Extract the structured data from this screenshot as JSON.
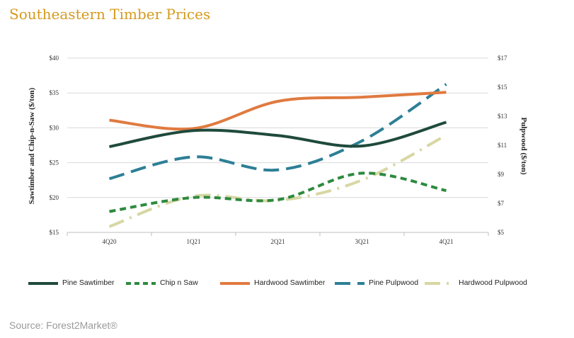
{
  "title": "Southeastern Timber Prices",
  "source": "Source: Forest2Market®",
  "chart_data": {
    "type": "line",
    "categories": [
      "4Q20",
      "1Q21",
      "2Q21",
      "3Q21",
      "4Q21"
    ],
    "y_left": {
      "label": "Sawtimber and Chip-n-Saw ($/ton)",
      "range": [
        15,
        40
      ],
      "ticks": [
        "$15",
        "$20",
        "$25",
        "$30",
        "$35",
        "$40"
      ]
    },
    "y_right": {
      "label": "Pulpwood ($/ton)",
      "range": [
        5,
        17
      ],
      "ticks": [
        "$5",
        "$7",
        "$9",
        "$11",
        "$13",
        "$15",
        "$17"
      ]
    },
    "grid": true,
    "legend_position": "bottom",
    "series": [
      {
        "name": "Pine Sawtimber",
        "axis": "left",
        "color": "#1f4a3c",
        "style": "solid",
        "values": [
          27.3,
          29.6,
          28.9,
          27.4,
          30.8
        ]
      },
      {
        "name": "Chip n Saw",
        "axis": "left",
        "color": "#2d8a3e",
        "style": "dash",
        "values": [
          18.0,
          20.0,
          19.7,
          23.5,
          21.0
        ]
      },
      {
        "name": "Hardwood Sawtimber",
        "axis": "left",
        "color": "#e07a3f",
        "style": "solid",
        "values": [
          31.1,
          29.9,
          33.8,
          34.4,
          35.1
        ]
      },
      {
        "name": "Pine Pulpwood",
        "axis": "right",
        "color": "#2d7f96",
        "style": "longdash",
        "values": [
          8.7,
          10.2,
          9.3,
          11.3,
          15.2
        ]
      },
      {
        "name": "Hardwood Pulpwood",
        "axis": "right",
        "color": "#d8d7a4",
        "style": "dashdot",
        "values": [
          5.4,
          7.5,
          7.2,
          8.6,
          11.7
        ]
      }
    ]
  }
}
